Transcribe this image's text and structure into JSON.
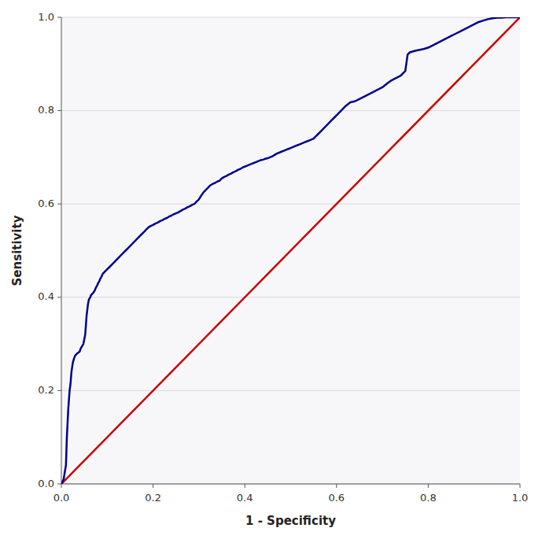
{
  "chart_data": {
    "type": "line",
    "xlabel": "1 - Specificity",
    "ylabel": "Sensitivity",
    "xlim": [
      0.0,
      1.0
    ],
    "ylim": [
      0.0,
      1.0
    ],
    "xticks": [
      {
        "value": 0.0,
        "label": "0.0"
      },
      0.2,
      0.4,
      0.6,
      0.8,
      {
        "value": 1.0,
        "label": "1.0"
      }
    ],
    "yticks": [
      {
        "value": 0.0,
        "label": "0.0"
      },
      0.2,
      0.4,
      0.6,
      0.8,
      {
        "value": 1.0,
        "label": "1.0"
      }
    ],
    "grid": "y",
    "series": [
      {
        "color": "#CC0000",
        "x": [
          0,
          1
        ],
        "values": [
          0,
          1
        ]
      },
      {
        "color": "#00008B",
        "x": [
          0.0,
          0.005,
          0.01,
          0.012,
          0.015,
          0.018,
          0.02,
          0.022,
          0.025,
          0.028,
          0.03,
          0.033,
          0.035,
          0.038,
          0.04,
          0.042,
          0.045,
          0.048,
          0.05,
          0.052,
          0.055,
          0.058,
          0.06,
          0.063,
          0.065,
          0.068,
          0.07,
          0.073,
          0.075,
          0.078,
          0.08,
          0.083,
          0.085,
          0.088,
          0.09,
          0.095,
          0.1,
          0.105,
          0.11,
          0.115,
          0.12,
          0.125,
          0.13,
          0.135,
          0.14,
          0.145,
          0.15,
          0.155,
          0.16,
          0.165,
          0.17,
          0.175,
          0.18,
          0.185,
          0.19,
          0.195,
          0.2,
          0.205,
          0.21,
          0.215,
          0.22,
          0.225,
          0.23,
          0.235,
          0.24,
          0.245,
          0.25,
          0.255,
          0.26,
          0.265,
          0.27,
          0.275,
          0.28,
          0.285,
          0.29,
          0.295,
          0.3,
          0.305,
          0.31,
          0.315,
          0.32,
          0.325,
          0.33,
          0.335,
          0.34,
          0.345,
          0.35,
          0.355,
          0.36,
          0.365,
          0.37,
          0.375,
          0.38,
          0.385,
          0.39,
          0.395,
          0.4,
          0.405,
          0.41,
          0.415,
          0.42,
          0.425,
          0.43,
          0.435,
          0.44,
          0.445,
          0.45,
          0.455,
          0.46,
          0.465,
          0.47,
          0.475,
          0.48,
          0.485,
          0.49,
          0.495,
          0.5,
          0.505,
          0.51,
          0.515,
          0.52,
          0.525,
          0.53,
          0.535,
          0.54,
          0.545,
          0.55,
          0.555,
          0.56,
          0.565,
          0.57,
          0.575,
          0.58,
          0.585,
          0.59,
          0.595,
          0.6,
          0.61,
          0.62,
          0.63,
          0.64,
          0.65,
          0.66,
          0.67,
          0.68,
          0.69,
          0.7,
          0.71,
          0.72,
          0.73,
          0.74,
          0.745,
          0.75,
          0.755,
          0.76,
          0.77,
          0.78,
          0.79,
          0.8,
          0.81,
          0.82,
          0.83,
          0.84,
          0.85,
          0.86,
          0.87,
          0.88,
          0.89,
          0.9,
          0.91,
          0.92,
          0.93,
          0.94,
          0.95,
          0.96,
          0.97,
          0.98,
          0.99,
          1.0
        ],
        "values": [
          0.0,
          0.01,
          0.04,
          0.1,
          0.16,
          0.2,
          0.215,
          0.24,
          0.26,
          0.27,
          0.275,
          0.278,
          0.28,
          0.282,
          0.284,
          0.29,
          0.295,
          0.3,
          0.31,
          0.32,
          0.36,
          0.385,
          0.395,
          0.4,
          0.405,
          0.408,
          0.41,
          0.415,
          0.42,
          0.425,
          0.43,
          0.435,
          0.44,
          0.445,
          0.45,
          0.455,
          0.46,
          0.465,
          0.47,
          0.475,
          0.48,
          0.485,
          0.49,
          0.495,
          0.5,
          0.505,
          0.51,
          0.515,
          0.52,
          0.525,
          0.53,
          0.535,
          0.54,
          0.545,
          0.55,
          0.553,
          0.555,
          0.558,
          0.56,
          0.563,
          0.565,
          0.568,
          0.57,
          0.573,
          0.575,
          0.578,
          0.58,
          0.582,
          0.585,
          0.588,
          0.59,
          0.593,
          0.595,
          0.598,
          0.6,
          0.605,
          0.61,
          0.618,
          0.625,
          0.63,
          0.635,
          0.64,
          0.643,
          0.645,
          0.648,
          0.65,
          0.655,
          0.658,
          0.66,
          0.663,
          0.665,
          0.668,
          0.67,
          0.673,
          0.675,
          0.678,
          0.68,
          0.682,
          0.684,
          0.686,
          0.688,
          0.69,
          0.692,
          0.694,
          0.695,
          0.697,
          0.698,
          0.7,
          0.702,
          0.705,
          0.708,
          0.71,
          0.712,
          0.714,
          0.716,
          0.718,
          0.72,
          0.722,
          0.724,
          0.726,
          0.728,
          0.73,
          0.732,
          0.734,
          0.736,
          0.738,
          0.74,
          0.745,
          0.75,
          0.755,
          0.76,
          0.765,
          0.77,
          0.775,
          0.78,
          0.785,
          0.79,
          0.8,
          0.81,
          0.818,
          0.82,
          0.825,
          0.83,
          0.835,
          0.84,
          0.845,
          0.85,
          0.858,
          0.865,
          0.87,
          0.875,
          0.88,
          0.885,
          0.92,
          0.925,
          0.928,
          0.93,
          0.932,
          0.935,
          0.94,
          0.945,
          0.95,
          0.955,
          0.96,
          0.965,
          0.97,
          0.975,
          0.98,
          0.985,
          0.99,
          0.993,
          0.996,
          0.998,
          0.999,
          0.999,
          1.0,
          1.0,
          1.0,
          1.0
        ]
      }
    ]
  }
}
